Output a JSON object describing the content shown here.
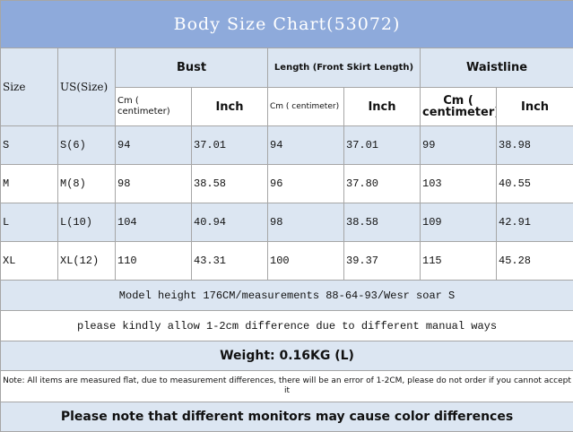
{
  "title": "Body Size Chart(53072)",
  "header": {
    "size": "Size",
    "us_size": "US(Size)",
    "groups": [
      "Bust",
      "Length (Front Skirt Length)",
      "Waistline"
    ],
    "units": [
      "Cm ( centimeter)",
      "Inch",
      "Cm ( centimeter)",
      "Inch",
      "Cm ( centimeter)",
      "Inch"
    ]
  },
  "rows": [
    [
      "S",
      "S(6)",
      "94",
      "37.01",
      "94",
      "37.01",
      "99",
      "38.98"
    ],
    [
      "M",
      "M(8)",
      "98",
      "38.58",
      "96",
      "37.80",
      "103",
      "40.55"
    ],
    [
      "L",
      "L(10)",
      "104",
      "40.94",
      "98",
      "38.58",
      "109",
      "42.91"
    ],
    [
      "XL",
      "XL(12)",
      "110",
      "43.31",
      "100",
      "39.37",
      "115",
      "45.28"
    ]
  ],
  "notes": [
    "Model height 176CM/measurements 88-64-93/Wesr soar S",
    "please kindly allow 1-2cm difference due to different manual ways",
    "Weight: 0.16KG (L)",
    "Note: All items are measured flat, due to measurement differences, there will be an error of 1-2CM, please do not order if you cannot accept it",
    "Please note that different monitors may cause color differences"
  ]
}
